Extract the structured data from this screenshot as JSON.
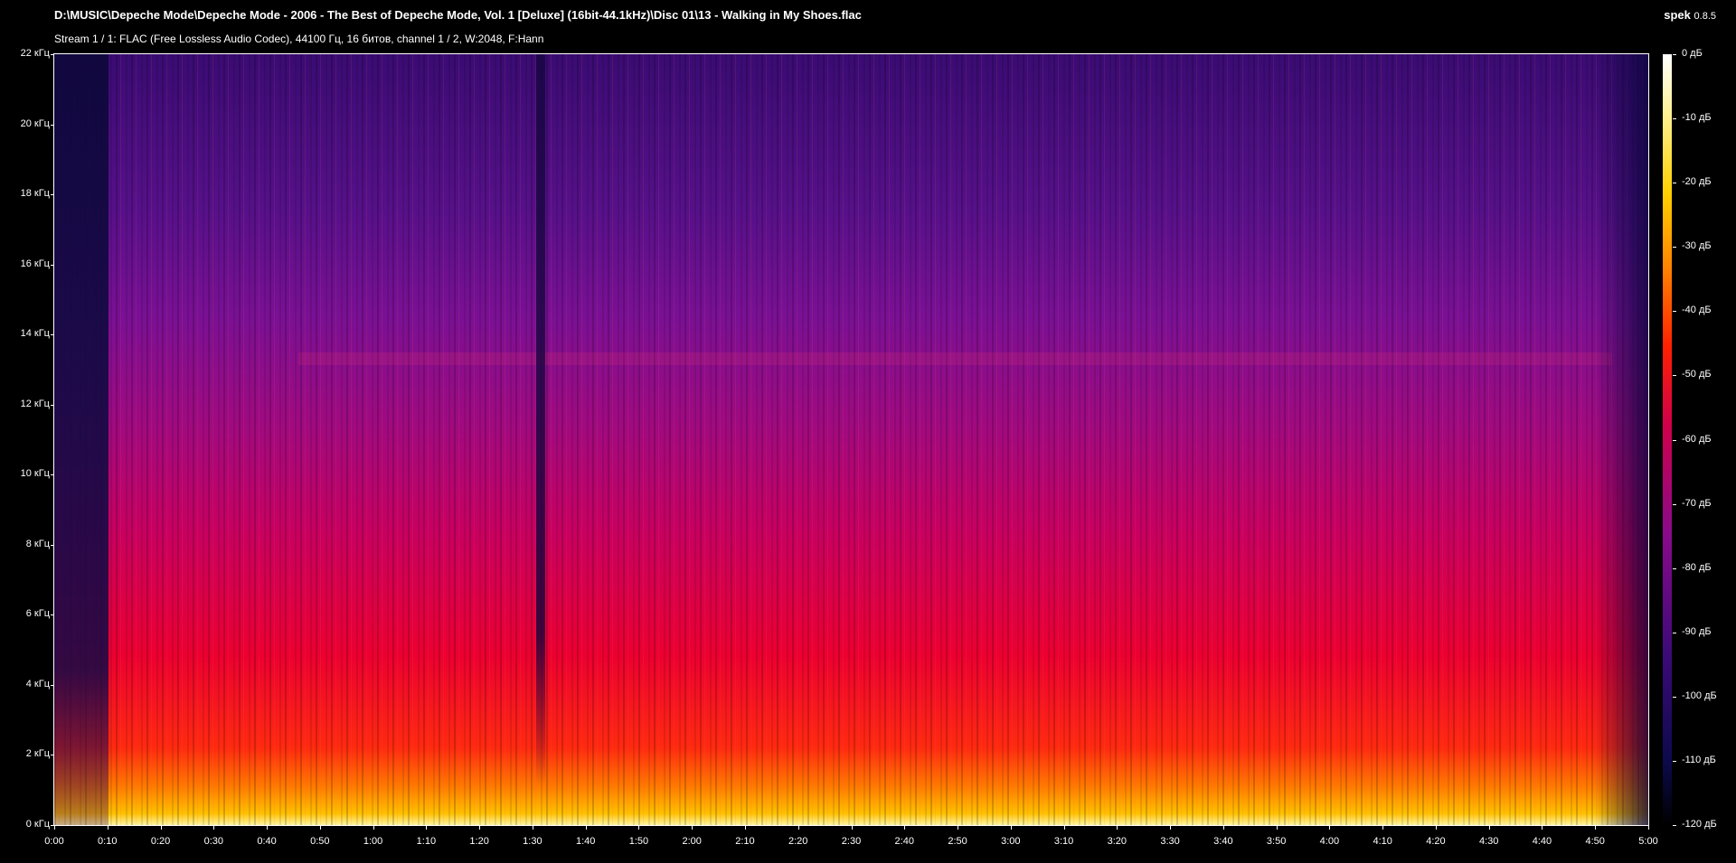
{
  "header": {
    "file_path": "D:\\MUSIC\\Depeche Mode\\Depeche Mode - 2006 - The Best of Depeche Mode, Vol. 1 [Deluxe] (16bit-44.1kHz)\\Disc 01\\13 - Walking in My Shoes.flac",
    "app_name": "spek",
    "version": "0.8.5",
    "stream_info": "Stream 1 / 1: FLAC (Free Lossless Audio Codec), 44100 Гц, 16 битов, channel 1 / 2, W:2048, F:Hann"
  },
  "axis_y": {
    "labels": [
      "22 кГц",
      "20 кГц",
      "18 кГц",
      "16 кГц",
      "14 кГц",
      "12 кГц",
      "10 кГц",
      "8 кГц",
      "6 кГц",
      "4 кГц",
      "2 кГц",
      "0 кГц"
    ]
  },
  "axis_x": {
    "labels": [
      "0:00",
      "0:10",
      "0:20",
      "0:30",
      "0:40",
      "0:50",
      "1:00",
      "1:10",
      "1:20",
      "1:30",
      "1:40",
      "1:50",
      "2:00",
      "2:10",
      "2:20",
      "2:30",
      "2:40",
      "2:50",
      "3:00",
      "3:10",
      "3:20",
      "3:30",
      "3:40",
      "3:50",
      "4:00",
      "4:10",
      "4:20",
      "4:30",
      "4:40",
      "4:50",
      "5:00"
    ]
  },
  "colorbar": {
    "labels": [
      "0 дБ",
      "-10 дБ",
      "-20 дБ",
      "-30 дБ",
      "-40 дБ",
      "-50 дБ",
      "-60 дБ",
      "-70 дБ",
      "-80 дБ",
      "-90 дБ",
      "-100 дБ",
      "-110 дБ",
      "-120 дБ"
    ]
  }
}
